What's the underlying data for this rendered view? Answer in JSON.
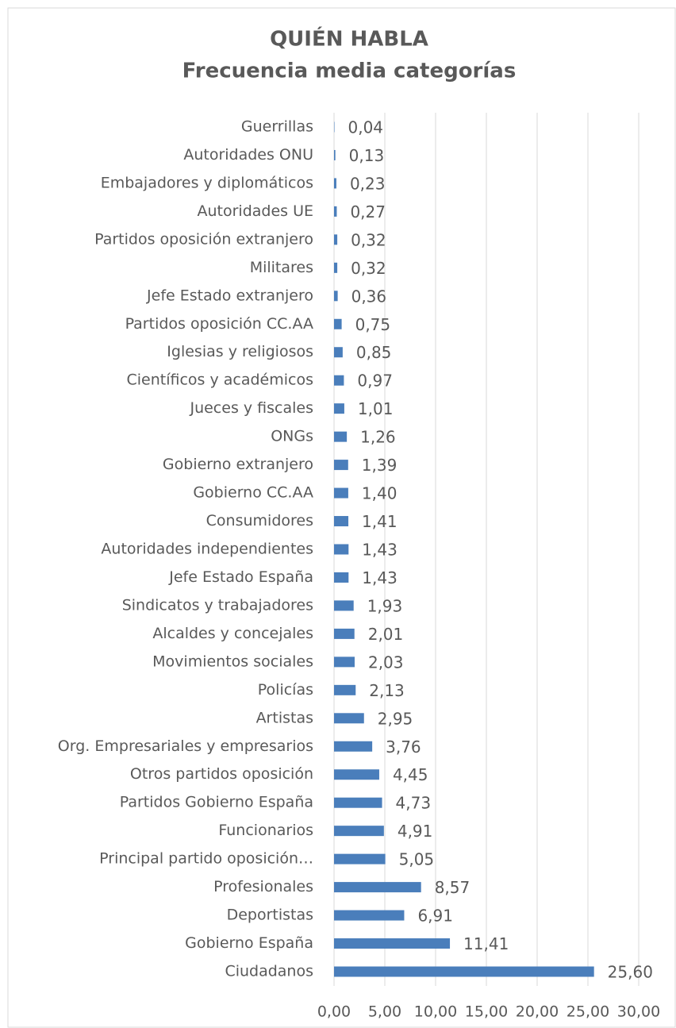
{
  "chart_data": {
    "type": "barh",
    "title": "QUIÉN HABLA",
    "subtitle": "Frecuencia media categorías",
    "categories": [
      "Guerrillas",
      "Autoridades ONU",
      "Embajadores y diplomáticos",
      "Autoridades UE",
      "Partidos oposición extranjero",
      "Militares",
      "Jefe Estado extranjero",
      "Partidos oposición CC.AA",
      "Iglesias y religiosos",
      "Científicos y académicos",
      "Jueces y fiscales",
      "ONGs",
      "Gobierno extranjero",
      "Gobierno CC.AA",
      "Consumidores",
      "Autoridades independientes",
      "Jefe Estado España",
      "Sindicatos y trabajadores",
      "Alcaldes y concejales",
      "Movimientos sociales",
      "Policías",
      "Artistas",
      "Org. Empresariales y empresarios",
      "Otros partidos oposición",
      "Partidos Gobierno España",
      "Funcionarios",
      "Principal partido oposición…",
      "Profesionales",
      "Deportistas",
      "Gobierno España",
      "Ciudadanos"
    ],
    "values": [
      0.04,
      0.13,
      0.23,
      0.27,
      0.32,
      0.32,
      0.36,
      0.75,
      0.85,
      0.97,
      1.01,
      1.26,
      1.39,
      1.4,
      1.41,
      1.43,
      1.43,
      1.93,
      2.01,
      2.03,
      2.13,
      2.95,
      3.76,
      4.45,
      4.73,
      4.91,
      5.05,
      8.57,
      6.91,
      11.41,
      25.6
    ],
    "value_labels": [
      "0,04",
      "0,13",
      "0,23",
      "0,27",
      "0,32",
      "0,32",
      "0,36",
      "0,75",
      "0,85",
      "0,97",
      "1,01",
      "1,26",
      "1,39",
      "1,40",
      "1,41",
      "1,43",
      "1,43",
      "1,93",
      "2,01",
      "2,03",
      "2,13",
      "2,95",
      "3,76",
      "4,45",
      "4,73",
      "4,91",
      "5,05",
      "8,57",
      "6,91",
      "11,41",
      "25,60"
    ],
    "color": "#4a7ebb",
    "xlim": [
      0,
      30
    ],
    "xticks": [
      {
        "value": 0,
        "label": "0,00"
      },
      {
        "value": 5,
        "label": "5,00"
      },
      {
        "value": 10,
        "label": "10,00"
      },
      {
        "value": 15,
        "label": "15,00"
      },
      {
        "value": 20,
        "label": "20,00"
      },
      {
        "value": 25,
        "label": "25,00"
      },
      {
        "value": 30,
        "label": "30,00"
      }
    ],
    "grid": true
  }
}
